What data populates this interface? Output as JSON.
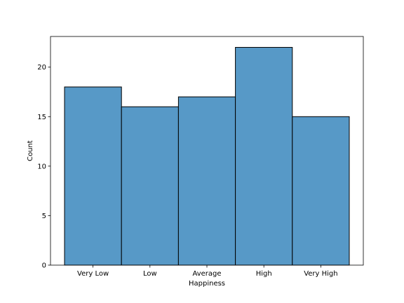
{
  "chart_data": {
    "type": "bar",
    "title": "",
    "xlabel": "Happiness",
    "ylabel": "Count",
    "categories": [
      "Very Low",
      "Low",
      "Average",
      "High",
      "Very High"
    ],
    "values": [
      18,
      16,
      17,
      22,
      15
    ],
    "ylim": [
      0,
      23.1
    ],
    "yticks": [
      0,
      5,
      10,
      15,
      20
    ],
    "grid": false,
    "legend": "none",
    "colors": {
      "bar": "#5799c7",
      "edge": "#000000",
      "axis": "#000000"
    }
  }
}
